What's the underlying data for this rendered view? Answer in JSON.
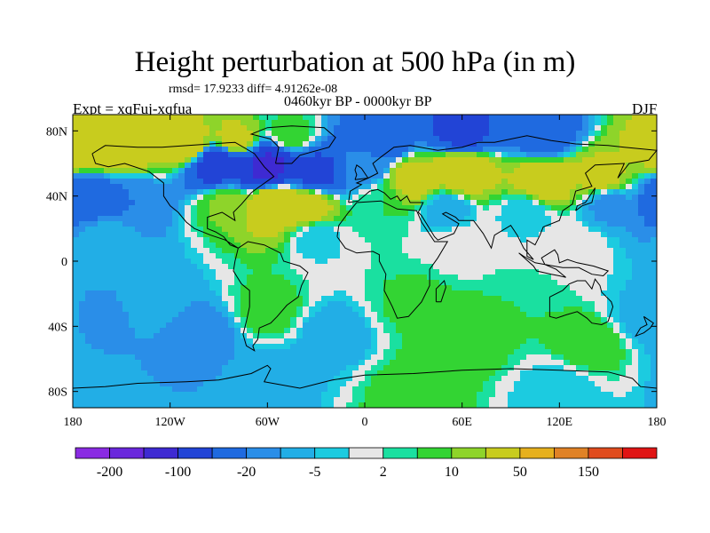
{
  "chart_data": {
    "type": "heatmap",
    "title": "Height perturbation at 500 hPa (in m)",
    "stats_line": "rmsd= 17.9233 diff= 4.91262e-08",
    "period": "0460kyr BP - 0000kyr BP",
    "experiment": "Expt = xqFuj-xqfua",
    "season": "DJF",
    "projection": "cylindrical-equidistant",
    "xlim": [
      -180,
      180
    ],
    "ylim": [
      -90,
      90
    ],
    "x_ticks": [
      {
        "value": -180,
        "label": "180"
      },
      {
        "value": -120,
        "label": "120W"
      },
      {
        "value": -60,
        "label": "60W"
      },
      {
        "value": 0,
        "label": "0"
      },
      {
        "value": 60,
        "label": "60E"
      },
      {
        "value": 120,
        "label": "120E"
      },
      {
        "value": 180,
        "label": "180"
      }
    ],
    "y_ticks": [
      {
        "value": 80,
        "label": "80N"
      },
      {
        "value": 40,
        "label": "40N"
      },
      {
        "value": 0,
        "label": "0"
      },
      {
        "value": -40,
        "label": "40S"
      },
      {
        "value": -80,
        "label": "80S"
      }
    ],
    "colorbar": {
      "levels": [
        -200,
        -150,
        -100,
        -50,
        -20,
        -10,
        -5,
        -2,
        2,
        5,
        10,
        20,
        50,
        100,
        150,
        200
      ],
      "labels": [
        {
          "level": -200,
          "text": "-200"
        },
        {
          "level": -100,
          "text": "-100"
        },
        {
          "level": -20,
          "text": "-20"
        },
        {
          "level": -5,
          "text": "-5"
        },
        {
          "level": 2,
          "text": "2"
        },
        {
          "level": 10,
          "text": "10"
        },
        {
          "level": 50,
          "text": "50"
        },
        {
          "level": 150,
          "text": "150"
        }
      ],
      "colors": [
        "#8a2be2",
        "#6a28dc",
        "#3e2ad2",
        "#2244d6",
        "#1f6ae0",
        "#2a8ee8",
        "#22aee6",
        "#1ccbe0",
        "#e6e6e6",
        "#1ae0a0",
        "#33d433",
        "#8ed42a",
        "#c8cc1e",
        "#e6b01e",
        "#e08226",
        "#e04c1e",
        "#e01414"
      ]
    },
    "field_values": [
      {
        "lon": -175,
        "lat": 70,
        "value": 30
      },
      {
        "lon": -150,
        "lat": 70,
        "value": 40
      },
      {
        "lon": -110,
        "lat": 72,
        "value": 35
      },
      {
        "lon": -80,
        "lat": 75,
        "value": 25
      },
      {
        "lon": -45,
        "lat": 78,
        "value": 8
      },
      {
        "lon": 10,
        "lat": 75,
        "value": -40
      },
      {
        "lon": 60,
        "lat": 80,
        "value": -60
      },
      {
        "lon": 110,
        "lat": 78,
        "value": -30
      },
      {
        "lon": -90,
        "lat": 60,
        "value": -80
      },
      {
        "lon": -60,
        "lat": 58,
        "value": -110
      },
      {
        "lon": -30,
        "lat": 55,
        "value": -60
      },
      {
        "lon": 0,
        "lat": 58,
        "value": -15
      },
      {
        "lon": 30,
        "lat": 50,
        "value": 30
      },
      {
        "lon": 60,
        "lat": 55,
        "value": 40
      },
      {
        "lon": 110,
        "lat": 48,
        "value": 35
      },
      {
        "lon": 145,
        "lat": 52,
        "value": 25
      },
      {
        "lon": -170,
        "lat": 38,
        "value": -45
      },
      {
        "lon": -145,
        "lat": 38,
        "value": -20
      },
      {
        "lon": -85,
        "lat": 35,
        "value": 12
      },
      {
        "lon": -55,
        "lat": 35,
        "value": 50
      },
      {
        "lon": -35,
        "lat": 33,
        "value": 30
      },
      {
        "lon": 10,
        "lat": 35,
        "value": 5
      },
      {
        "lon": 50,
        "lat": 32,
        "value": -8
      },
      {
        "lon": 100,
        "lat": 30,
        "value": -5
      },
      {
        "lon": 150,
        "lat": 35,
        "value": -12
      },
      {
        "lon": -160,
        "lat": 15,
        "value": -5
      },
      {
        "lon": -30,
        "lat": 15,
        "value": -4
      },
      {
        "lon": 60,
        "lat": 10,
        "value": 0
      },
      {
        "lon": 130,
        "lat": 8,
        "value": 0
      },
      {
        "lon": -165,
        "lat": -35,
        "value": -12
      },
      {
        "lon": -130,
        "lat": -25,
        "value": -8
      },
      {
        "lon": -100,
        "lat": -45,
        "value": -15
      },
      {
        "lon": -60,
        "lat": -30,
        "value": 8
      },
      {
        "lon": -20,
        "lat": -45,
        "value": -8
      },
      {
        "lon": 30,
        "lat": -25,
        "value": 6
      },
      {
        "lon": 60,
        "lat": -45,
        "value": 10
      },
      {
        "lon": 100,
        "lat": -30,
        "value": 5
      },
      {
        "lon": 140,
        "lat": -50,
        "value": 10
      },
      {
        "lon": 170,
        "lat": -35,
        "value": -6
      },
      {
        "lon": -150,
        "lat": -65,
        "value": -10
      },
      {
        "lon": -60,
        "lat": -70,
        "value": -8
      },
      {
        "lon": 30,
        "lat": -80,
        "value": 8
      },
      {
        "lon": 120,
        "lat": -80,
        "value": -5
      }
    ]
  }
}
